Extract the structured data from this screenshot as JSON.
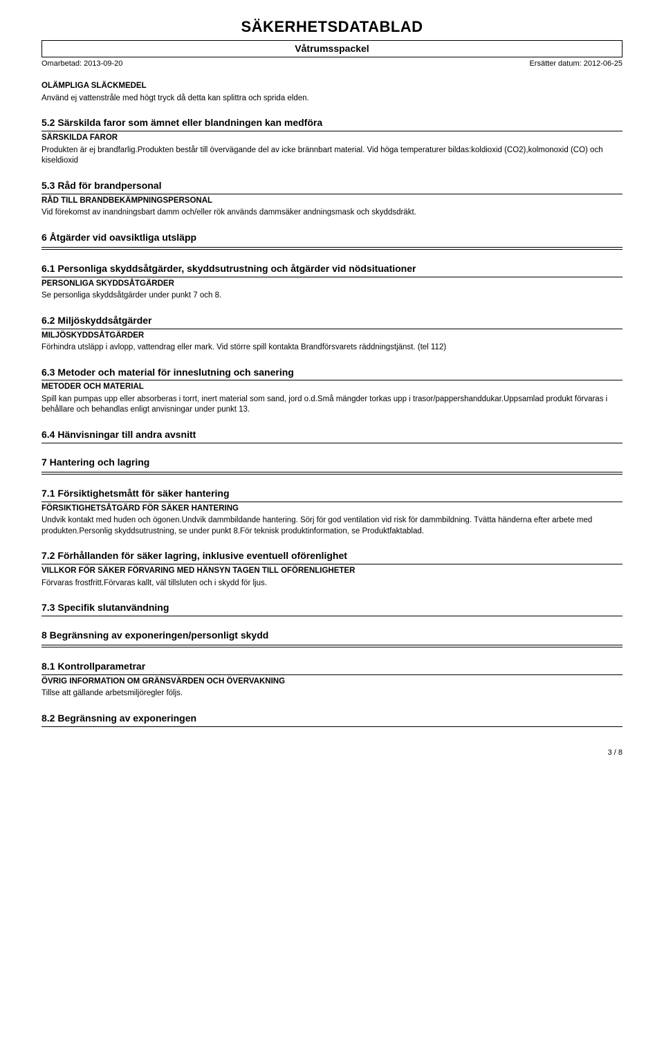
{
  "header": {
    "doc_title": "SÄKERHETSDATABLAD",
    "product_name": "Våtrumsspackel",
    "revised_label": "Omarbetad: 2013-09-20",
    "replaces_label": "Ersätter datum: 2012-06-25"
  },
  "sections": [
    {
      "label": "OLÄMPLIGA SLÄCKMEDEL",
      "body": "Använd ej vattenstråle med högt tryck då detta kan splittra och sprida elden."
    },
    {
      "title": "5.2 Särskilda faror som ämnet eller blandningen kan medföra",
      "label": "SÄRSKILDA FAROR",
      "body": "Produkten är ej brandfarlig.Produkten består till övervägande del av icke brännbart material. Vid höga temperaturer bildas:koldioxid (CO2),kolmonoxid (CO) och kiseldioxid"
    },
    {
      "title": "5.3 Råd för brandpersonal",
      "label": "RÅD TILL BRANDBEKÄMPNINGSPERSONAL",
      "body": "Vid förekomst av inandningsbart damm och/eller rök används dammsäker andningsmask och skyddsdräkt."
    },
    {
      "main_title": "6 Åtgärder vid oavsiktliga utsläpp"
    },
    {
      "title": "6.1 Personliga skyddsåtgärder, skyddsutrustning och åtgärder vid nödsituationer",
      "label": "PERSONLIGA SKYDDSÅTGÄRDER",
      "body": "Se personliga skyddsåtgärder under punkt 7 och 8."
    },
    {
      "title": "6.2 Miljöskyddsåtgärder",
      "label": "MILJÖSKYDDSÅTGÄRDER",
      "body": "Förhindra utsläpp i avlopp, vattendrag eller mark. Vid större spill kontakta Brandförsvarets räddningstjänst. (tel 112)"
    },
    {
      "title": "6.3 Metoder och material för inneslutning och sanering",
      "label": "METODER OCH MATERIAL",
      "body": "Spill kan pumpas upp eller absorberas i torrt, inert material som sand, jord o.d.Små mängder torkas upp i trasor/pappershanddukar.Uppsamlad produkt förvaras i behållare och behandlas enligt anvisningar under punkt 13."
    },
    {
      "title": "6.4 Hänvisningar till andra avsnitt"
    },
    {
      "main_title": "7 Hantering och lagring"
    },
    {
      "title": "7.1 Försiktighetsmått för säker hantering",
      "label": "FÖRSIKTIGHETSÅTGÄRD FÖR SÄKER HANTERING",
      "body": "Undvik kontakt med huden och ögonen.Undvik dammbildande hantering. Sörj för god ventilation vid risk för dammbildning. Tvätta händerna efter arbete med produkten.Personlig skyddsutrustning, se under punkt 8.För teknisk produktinformation, se Produktfaktablad."
    },
    {
      "title": "7.2 Förhållanden för säker lagring, inklusive eventuell oförenlighet",
      "label": "VILLKOR FÖR SÄKER FÖRVARING MED HÄNSYN TAGEN TILL OFÖRENLIGHETER",
      "body": "Förvaras frostfritt.Förvaras kallt, väl tillsluten och i skydd för ljus."
    },
    {
      "title": "7.3 Specifik slutanvändning"
    },
    {
      "main_title": "8 Begränsning av exponeringen/personligt skydd"
    },
    {
      "title": "8.1 Kontrollparametrar",
      "label": "ÖVRIG INFORMATION OM GRÄNSVÄRDEN OCH ÖVERVAKNING",
      "body": "Tillse att gällande arbetsmiljöregler följs."
    },
    {
      "title": "8.2 Begränsning av exponeringen"
    }
  ],
  "page_number": "3 / 8"
}
